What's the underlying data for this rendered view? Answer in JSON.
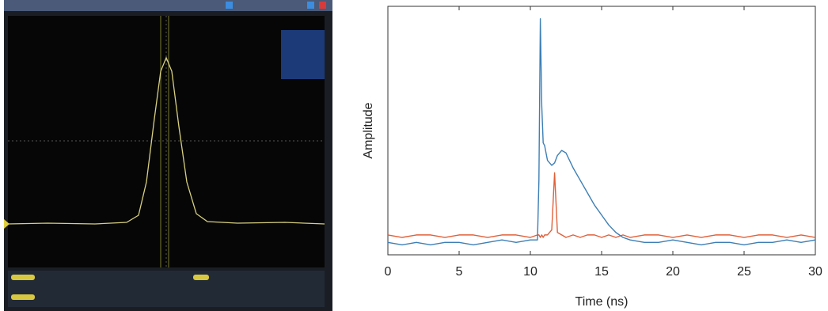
{
  "chart_data": {
    "type": "line",
    "x_label": "Time (ns)",
    "y_label": "Amplitude",
    "x": [
      0,
      1,
      2,
      3,
      4,
      5,
      6,
      7,
      8,
      9,
      10,
      10.5,
      10.6,
      10.7,
      10.8,
      10.9,
      11,
      11.2,
      11.5,
      11.7,
      11.9,
      12.2,
      12.5,
      13,
      13.5,
      14,
      14.5,
      15,
      15.5,
      16,
      16.5,
      17,
      18,
      19,
      20,
      21,
      22,
      23,
      24,
      25,
      26,
      27,
      28,
      29,
      30
    ],
    "series": [
      {
        "color": "#3d7fb5",
        "values": [
          0.05,
          0.04,
          0.05,
          0.04,
          0.05,
          0.05,
          0.04,
          0.05,
          0.06,
          0.05,
          0.06,
          0.06,
          0.3,
          0.95,
          0.6,
          0.45,
          0.44,
          0.38,
          0.36,
          0.37,
          0.4,
          0.42,
          0.41,
          0.35,
          0.3,
          0.25,
          0.2,
          0.16,
          0.12,
          0.09,
          0.07,
          0.06,
          0.05,
          0.05,
          0.06,
          0.05,
          0.04,
          0.05,
          0.05,
          0.04,
          0.05,
          0.05,
          0.06,
          0.05,
          0.06
        ]
      },
      {
        "color": "#e0603a",
        "values": [
          0.08,
          0.07,
          0.08,
          0.08,
          0.07,
          0.08,
          0.08,
          0.07,
          0.08,
          0.08,
          0.07,
          0.08,
          0.08,
          0.07,
          0.08,
          0.07,
          0.08,
          0.08,
          0.1,
          0.33,
          0.09,
          0.08,
          0.07,
          0.08,
          0.07,
          0.08,
          0.08,
          0.07,
          0.08,
          0.07,
          0.08,
          0.07,
          0.08,
          0.08,
          0.07,
          0.08,
          0.07,
          0.08,
          0.08,
          0.07,
          0.08,
          0.08,
          0.07,
          0.08,
          0.07
        ]
      }
    ],
    "xlim": [
      0,
      30
    ],
    "xticks": [
      0,
      5,
      10,
      15,
      20,
      25,
      30
    ],
    "ylim": [
      0,
      1
    ]
  }
}
